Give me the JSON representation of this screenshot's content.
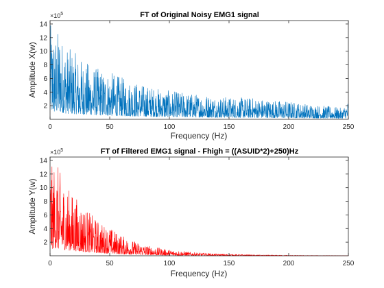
{
  "chart_data": [
    {
      "type": "line",
      "title": "FT of Original Noisy EMG1 signal",
      "xlabel": "Frequency (Hz)",
      "ylabel": "Amplitude X(w)",
      "xlim": [
        0,
        250
      ],
      "ylim": [
        0,
        1450000
      ],
      "xticks": [
        "0",
        "50",
        "100",
        "150",
        "200",
        "250"
      ],
      "yticks": [
        "2",
        "4",
        "6",
        "8",
        "10",
        "12",
        "14"
      ],
      "ytick_values": [
        200000,
        400000,
        600000,
        800000,
        1000000,
        1200000,
        1400000
      ],
      "multiplier": "×10",
      "multiplier_exp": "5",
      "grid": false,
      "color": "#0072BD",
      "series": [
        {
          "x": [
            0,
            2,
            5,
            8,
            10,
            15,
            20,
            25,
            30,
            35,
            40,
            45,
            50,
            60,
            70,
            80,
            90,
            100,
            110,
            120,
            130,
            140,
            150,
            160,
            170,
            180,
            190,
            200,
            210,
            220,
            230,
            240,
            245,
            250
          ],
          "y": [
            1400000,
            1350000,
            1250000,
            1380000,
            1200000,
            1050000,
            1000000,
            900000,
            850000,
            800000,
            750000,
            720000,
            700000,
            620000,
            560000,
            500000,
            460000,
            420000,
            400000,
            380000,
            370000,
            340000,
            330000,
            320000,
            320000,
            300000,
            280000,
            270000,
            240000,
            220000,
            200000,
            180000,
            160000,
            280000
          ]
        }
      ]
    },
    {
      "type": "line",
      "title": "FT of Filtered EMG1 signal - Fhigh = ((ASUID*2)+250)Hz",
      "xlabel": "Frequency (Hz)",
      "ylabel": "Amplitude Y(w)",
      "xlim": [
        0,
        250
      ],
      "ylim": [
        0,
        1450000
      ],
      "xticks": [
        "0",
        "50",
        "100",
        "150",
        "200",
        "250"
      ],
      "yticks": [
        "2",
        "4",
        "6",
        "8",
        "10",
        "12",
        "14"
      ],
      "ytick_values": [
        200000,
        400000,
        600000,
        800000,
        1000000,
        1200000,
        1400000
      ],
      "multiplier": "×10",
      "multiplier_exp": "5",
      "grid": false,
      "color": "#FF0000",
      "series": [
        {
          "x": [
            0,
            2,
            5,
            8,
            10,
            15,
            20,
            25,
            30,
            35,
            40,
            45,
            50,
            60,
            70,
            80,
            90,
            100,
            110,
            120,
            130,
            140,
            150,
            160,
            170,
            180,
            190,
            200,
            210,
            220,
            230,
            240,
            250
          ],
          "y": [
            1400000,
            1300000,
            1420000,
            1250000,
            1150000,
            1000000,
            900000,
            800000,
            700000,
            600000,
            520000,
            460000,
            420000,
            300000,
            220000,
            160000,
            120000,
            90000,
            70000,
            50000,
            40000,
            30000,
            25000,
            20000,
            15000,
            12000,
            10000,
            8000,
            6000,
            5000,
            4000,
            3000,
            2000
          ]
        }
      ]
    }
  ]
}
